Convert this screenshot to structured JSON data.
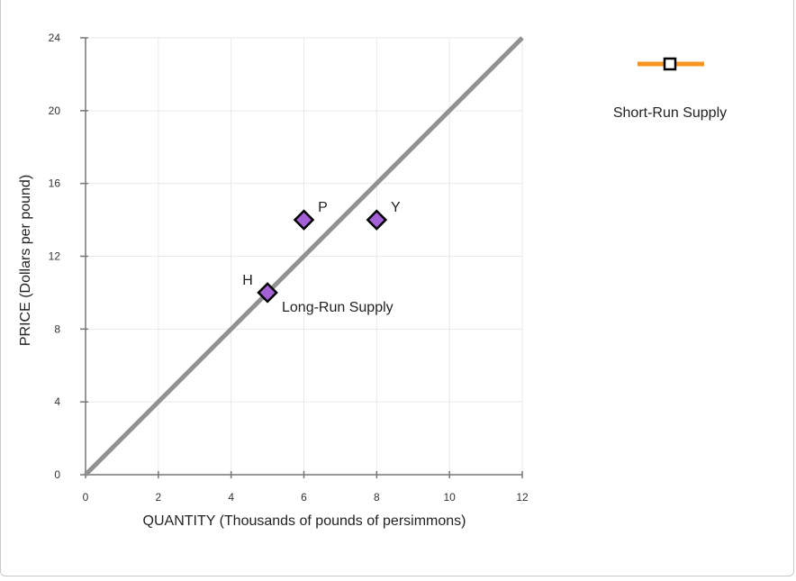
{
  "chart_data": {
    "type": "line",
    "xlabel": "QUANTITY (Thousands of pounds of persimmons)",
    "ylabel": "PRICE (Dollars per pound)",
    "xlim": [
      0,
      12
    ],
    "ylim": [
      0,
      24
    ],
    "x_ticks": [
      "0",
      "2",
      "4",
      "6",
      "8",
      "10",
      "12"
    ],
    "y_ticks": [
      "0",
      "4",
      "8",
      "12",
      "16",
      "20",
      "24"
    ],
    "grid": true,
    "series": [
      {
        "name": "Long-Run Supply",
        "color": "#919191",
        "points": [
          {
            "x": 0,
            "y": 0
          },
          {
            "x": 12,
            "y": 24
          }
        ]
      }
    ],
    "points": [
      {
        "label": "H",
        "x": 5,
        "y": 10
      },
      {
        "label": "P",
        "x": 6,
        "y": 14
      },
      {
        "label": "Y",
        "x": 8,
        "y": 14
      }
    ],
    "point_color": "#a461d6",
    "legend": {
      "placement": "top-right",
      "items": [
        {
          "name": "Short-Run Supply",
          "color": "#f7941d",
          "marker": "square-open"
        }
      ]
    }
  }
}
